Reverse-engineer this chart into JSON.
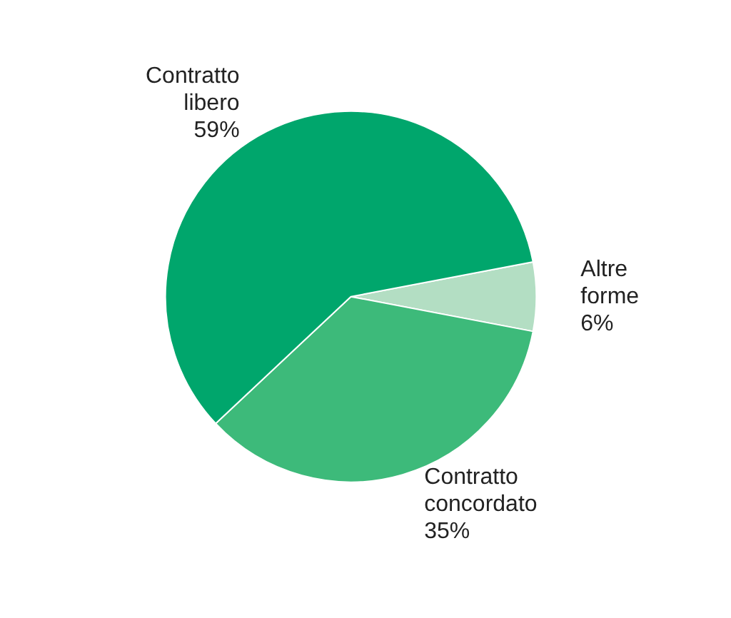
{
  "chart_data": {
    "type": "pie",
    "categories": [
      "Altre forme",
      "Contratto concordato",
      "Contratto libero"
    ],
    "values": [
      6,
      35,
      59
    ],
    "colors": [
      "#b3dec3",
      "#3dba7a",
      "#00a66c"
    ],
    "value_labels": [
      "6%",
      "35%",
      "59%"
    ]
  }
}
